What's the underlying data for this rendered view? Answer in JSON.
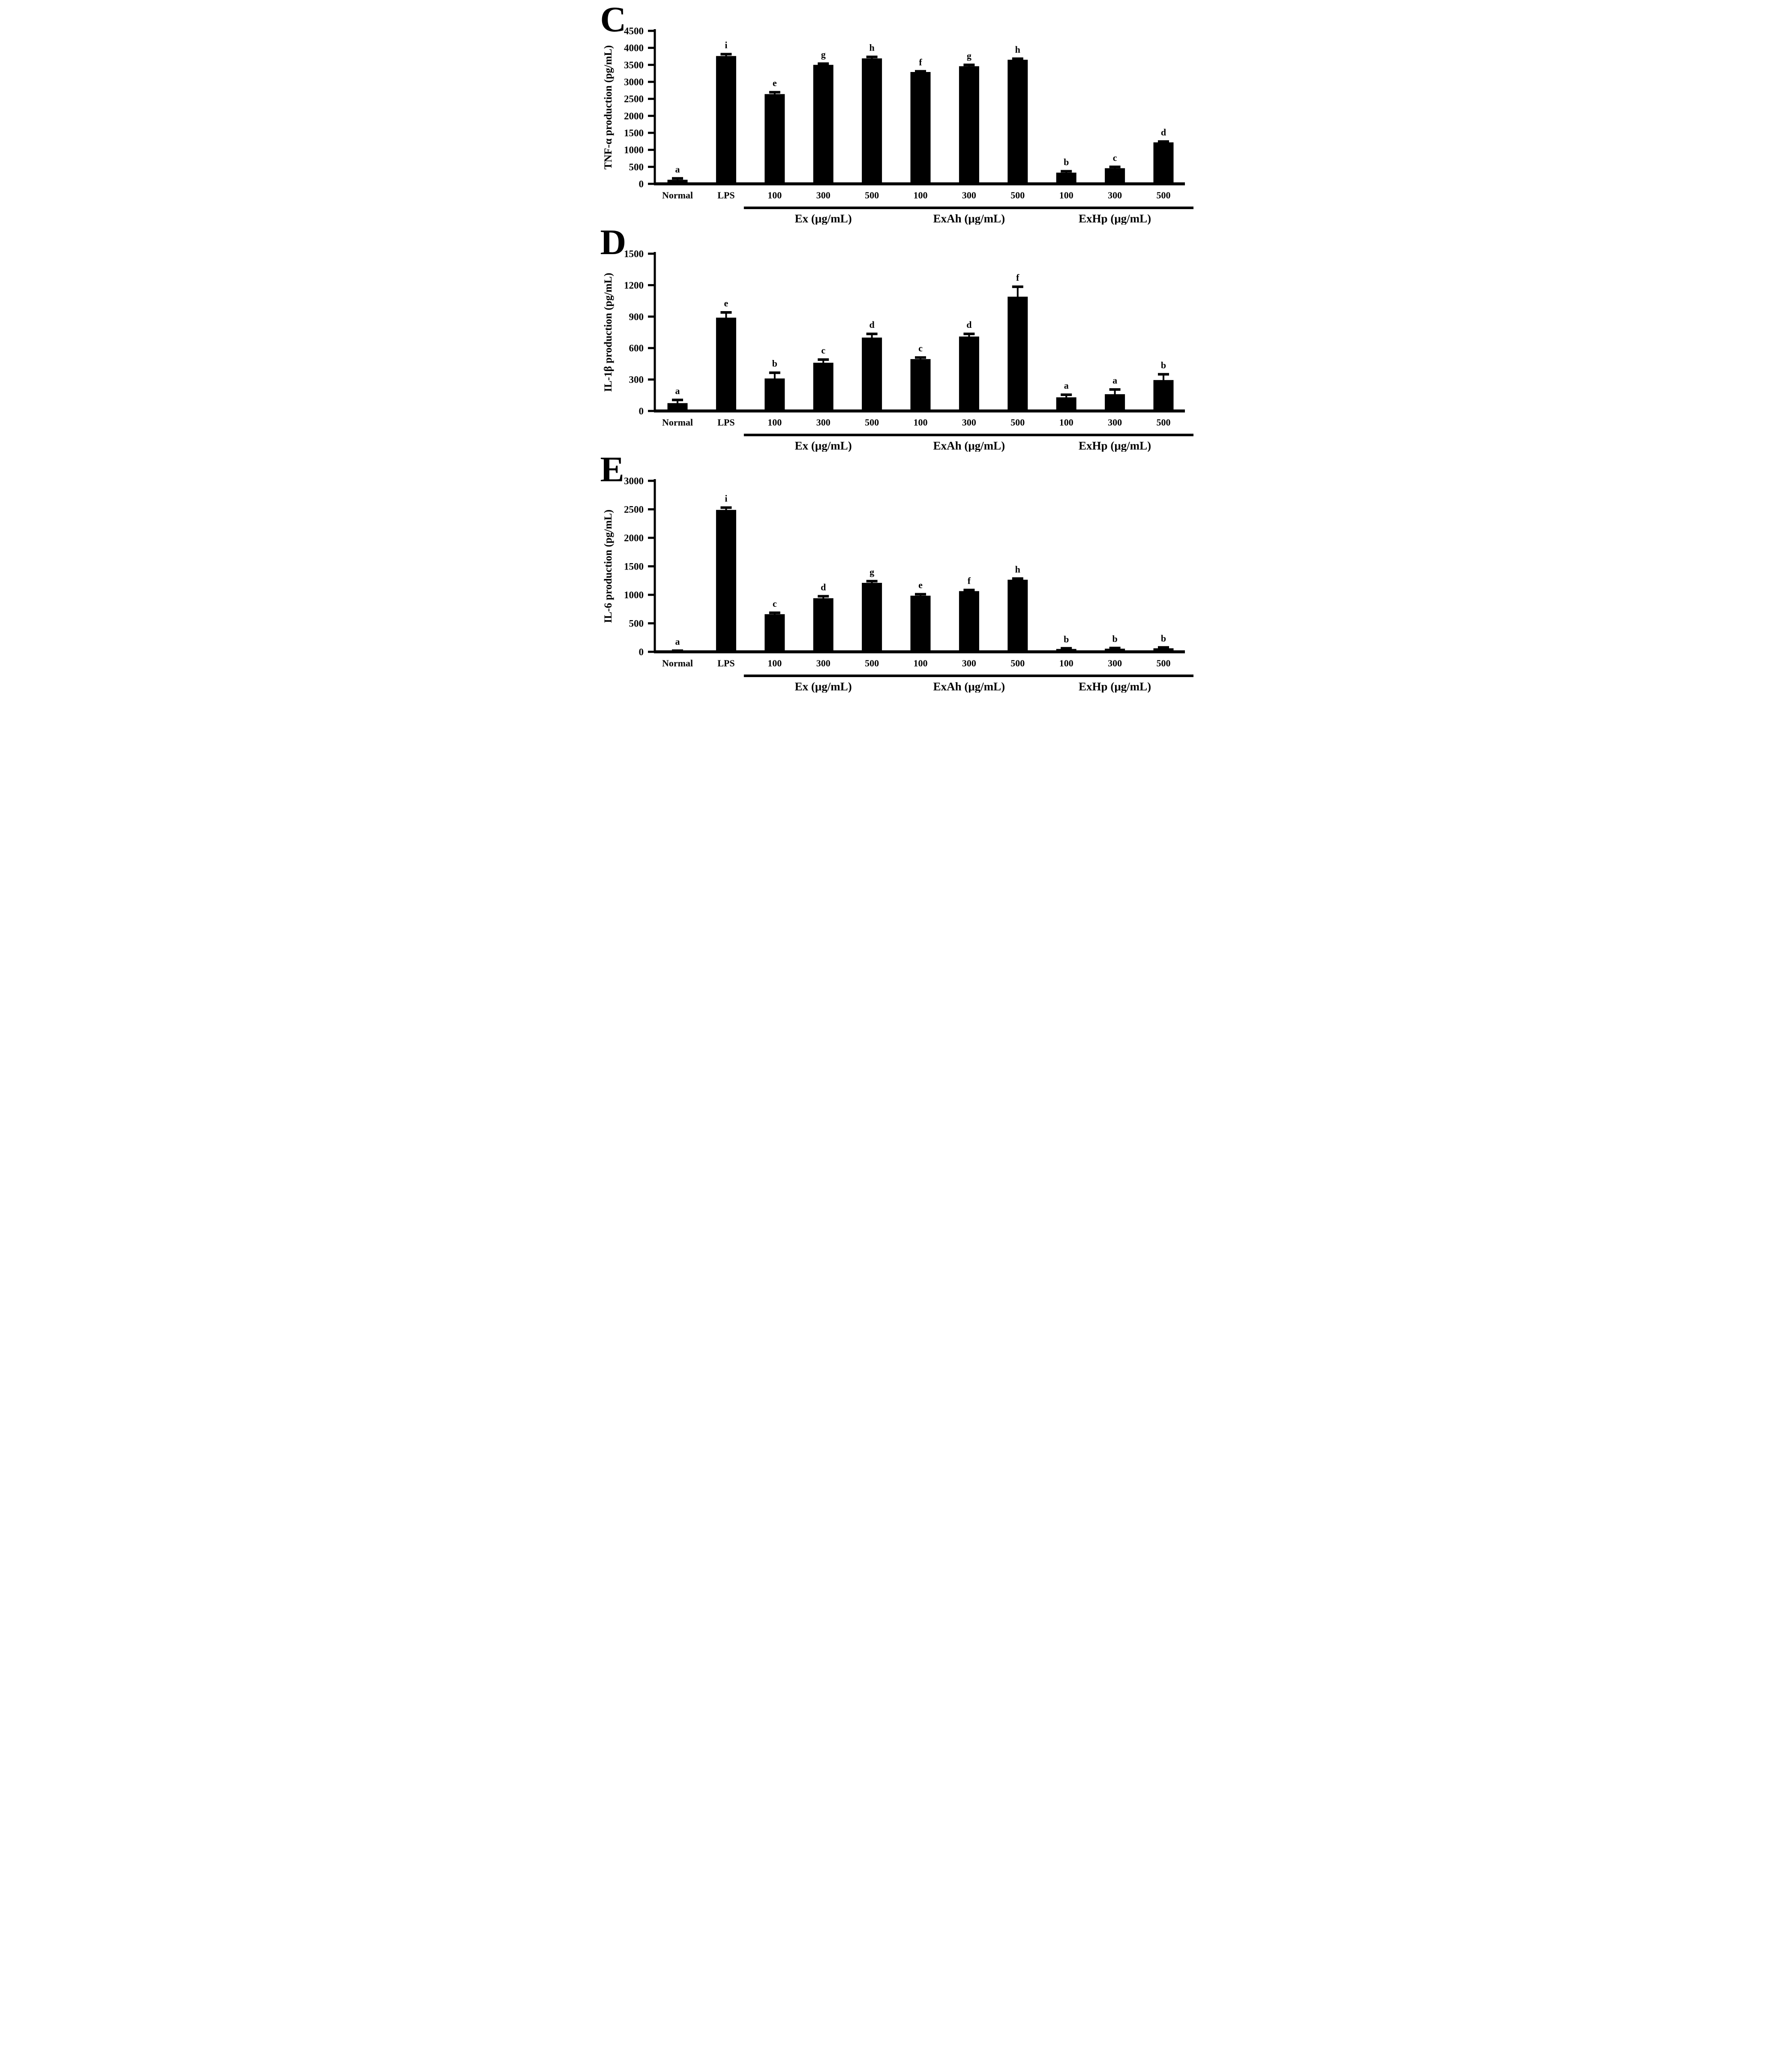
{
  "figure": {
    "background_color": "#ffffff",
    "bar_color": "#000000",
    "axis_color": "#000000",
    "text_color": "#000000"
  },
  "chart_data": [
    {
      "panel_letter": "C",
      "type": "bar",
      "title": "",
      "xlabel": "",
      "ylabel": "TNF-α production (pg/mL)",
      "ylim": [
        0,
        4500
      ],
      "ytick_step": 500,
      "ytick_labels": [
        "0",
        "500",
        "1000",
        "1500",
        "2000",
        "2500",
        "3000",
        "3500",
        "4000",
        "4500"
      ],
      "grid": false,
      "legend": "none",
      "categories": [
        "Normal",
        "LPS",
        "100",
        "300",
        "500",
        "100",
        "300",
        "500",
        "100",
        "300",
        "500"
      ],
      "values": [
        120,
        3760,
        2640,
        3500,
        3690,
        3290,
        3460,
        3650,
        330,
        460,
        1220
      ],
      "errors": [
        40,
        55,
        55,
        35,
        45,
        20,
        40,
        30,
        40,
        40,
        25
      ],
      "sig_labels": [
        "a",
        "i",
        "e",
        "g",
        "h",
        "f",
        "g",
        "h",
        "b",
        "c",
        "d"
      ],
      "groups": [
        {
          "label": "Ex (μg/mL)",
          "start": 2,
          "end": 4
        },
        {
          "label": "ExAh (μg/mL)",
          "start": 5,
          "end": 7
        },
        {
          "label": "ExHp (μg/mL)",
          "start": 8,
          "end": 10
        }
      ]
    },
    {
      "panel_letter": "D",
      "type": "bar",
      "title": "",
      "xlabel": "",
      "ylabel": "IL-1β production (pg/mL)",
      "ylim": [
        0,
        1500
      ],
      "ytick_step": 300,
      "ytick_labels": [
        "0",
        "300",
        "600",
        "900",
        "1200",
        "1500"
      ],
      "grid": false,
      "legend": "none",
      "categories": [
        "Normal",
        "LPS",
        "100",
        "300",
        "500",
        "100",
        "300",
        "500",
        "100",
        "300",
        "500"
      ],
      "values": [
        75,
        890,
        310,
        460,
        700,
        495,
        710,
        1090,
        130,
        160,
        295
      ],
      "errors": [
        30,
        50,
        55,
        30,
        35,
        15,
        25,
        95,
        25,
        45,
        55
      ],
      "sig_labels": [
        "a",
        "e",
        "b",
        "c",
        "d",
        "c",
        "d",
        "f",
        "a",
        "a",
        "b"
      ],
      "groups": [
        {
          "label": "Ex (μg/mL)",
          "start": 2,
          "end": 4
        },
        {
          "label": "ExAh (μg/mL)",
          "start": 5,
          "end": 7
        },
        {
          "label": "ExHp (μg/mL)",
          "start": 8,
          "end": 10
        }
      ]
    },
    {
      "panel_letter": "E",
      "type": "bar",
      "title": "",
      "xlabel": "",
      "ylabel": "IL-6 production (pg/mL)",
      "ylim": [
        0,
        3000
      ],
      "ytick_step": 500,
      "ytick_labels": [
        "0",
        "500",
        "1000",
        "1500",
        "2000",
        "2500",
        "3000"
      ],
      "grid": false,
      "legend": "none",
      "categories": [
        "Normal",
        "LPS",
        "100",
        "300",
        "500",
        "100",
        "300",
        "500",
        "100",
        "300",
        "500"
      ],
      "values": [
        12,
        2490,
        660,
        940,
        1210,
        985,
        1065,
        1265,
        50,
        55,
        62
      ],
      "errors": [
        8,
        40,
        25,
        35,
        30,
        25,
        20,
        20,
        12,
        12,
        15
      ],
      "sig_labels": [
        "a",
        "i",
        "c",
        "d",
        "g",
        "e",
        "f",
        "h",
        "b",
        "b",
        "b"
      ],
      "groups": [
        {
          "label": "Ex (μg/mL)",
          "start": 2,
          "end": 4
        },
        {
          "label": "ExAh (μg/mL)",
          "start": 5,
          "end": 7
        },
        {
          "label": "ExHp (μg/mL)",
          "start": 8,
          "end": 10
        }
      ]
    }
  ]
}
